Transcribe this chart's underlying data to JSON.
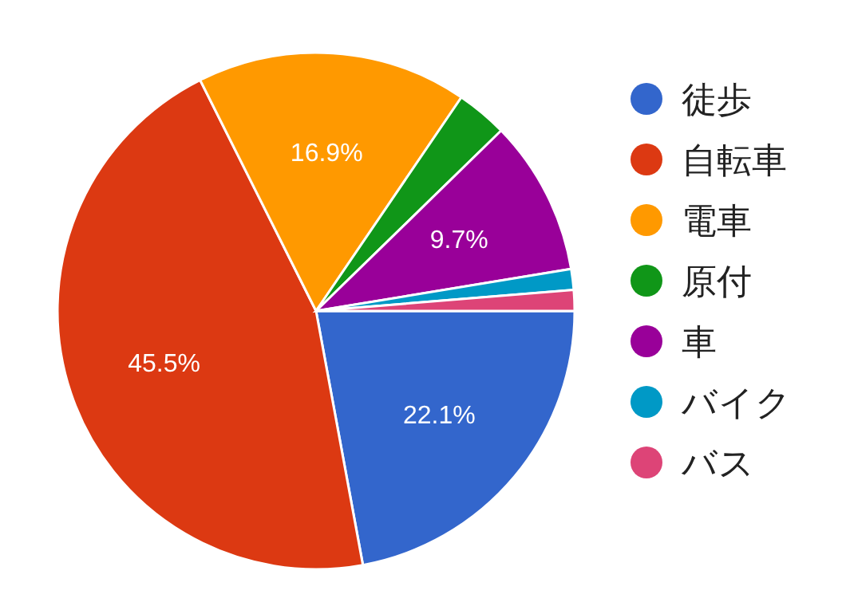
{
  "chart_data": {
    "type": "pie",
    "categories": [
      "徒歩",
      "自転車",
      "電車",
      "原付",
      "車",
      "バイク",
      "バス"
    ],
    "values": [
      22.1,
      45.5,
      16.9,
      3.2,
      9.7,
      1.3,
      1.3
    ],
    "colors": [
      "#3366cc",
      "#dc3912",
      "#ff9900",
      "#109618",
      "#990099",
      "#0099c6",
      "#dd4477"
    ],
    "value_labels": [
      "22.1%",
      "45.5%",
      "16.9%",
      null,
      "9.7%",
      null,
      null
    ],
    "legend": "right"
  }
}
